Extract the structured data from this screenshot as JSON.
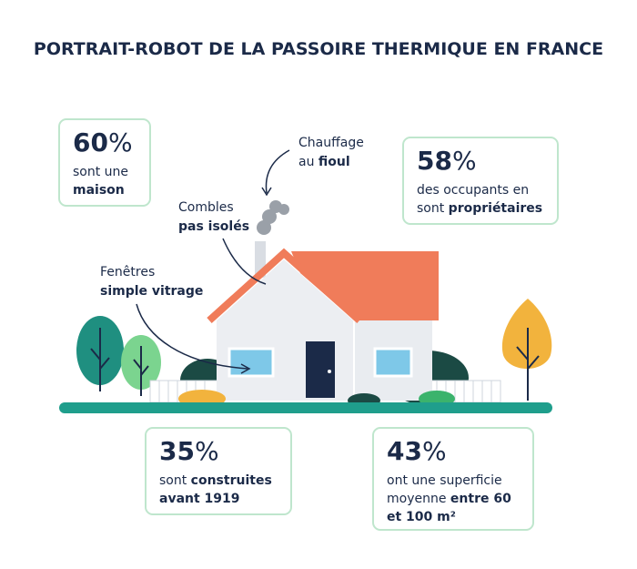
{
  "title": "PORTRAIT-ROBOT DE LA PASSOIRE THERMIQUE EN FRANCE",
  "stats": [
    {
      "number": "60",
      "unit": "%",
      "lines": [
        [
          {
            "text": "sont une",
            "bold": false
          }
        ],
        [
          {
            "text": "maison",
            "bold": true
          }
        ]
      ]
    },
    {
      "number": "58",
      "unit": "%",
      "lines": [
        [
          {
            "text": "des occupants en",
            "bold": false
          }
        ],
        [
          {
            "text": "sont ",
            "bold": false
          },
          {
            "text": "propriétaires",
            "bold": true
          }
        ]
      ]
    },
    {
      "number": "35",
      "unit": "%",
      "lines": [
        [
          {
            "text": "sont ",
            "bold": false
          },
          {
            "text": "construites",
            "bold": true
          }
        ],
        [
          {
            "text": "avant 1919",
            "bold": true
          }
        ]
      ]
    },
    {
      "number": "43",
      "unit": "%",
      "lines": [
        [
          {
            "text": "ont une superficie",
            "bold": false
          }
        ],
        [
          {
            "text": "moyenne ",
            "bold": false
          },
          {
            "text": "entre 60",
            "bold": true
          }
        ],
        [
          {
            "text": "et 100 m²",
            "bold": true
          }
        ]
      ]
    }
  ],
  "annotations": [
    {
      "lines": [
        [
          {
            "text": "Chauffage",
            "bold": false
          }
        ],
        [
          {
            "text": "au ",
            "bold": false
          },
          {
            "text": "fioul",
            "bold": true
          }
        ]
      ]
    },
    {
      "lines": [
        [
          {
            "text": "Combles",
            "bold": false
          }
        ],
        [
          {
            "text": "pas isolés",
            "bold": true
          }
        ]
      ]
    },
    {
      "lines": [
        [
          {
            "text": "Fenêtres",
            "bold": false
          }
        ],
        [
          {
            "text": "simple vitrage",
            "bold": true
          }
        ]
      ]
    }
  ]
}
